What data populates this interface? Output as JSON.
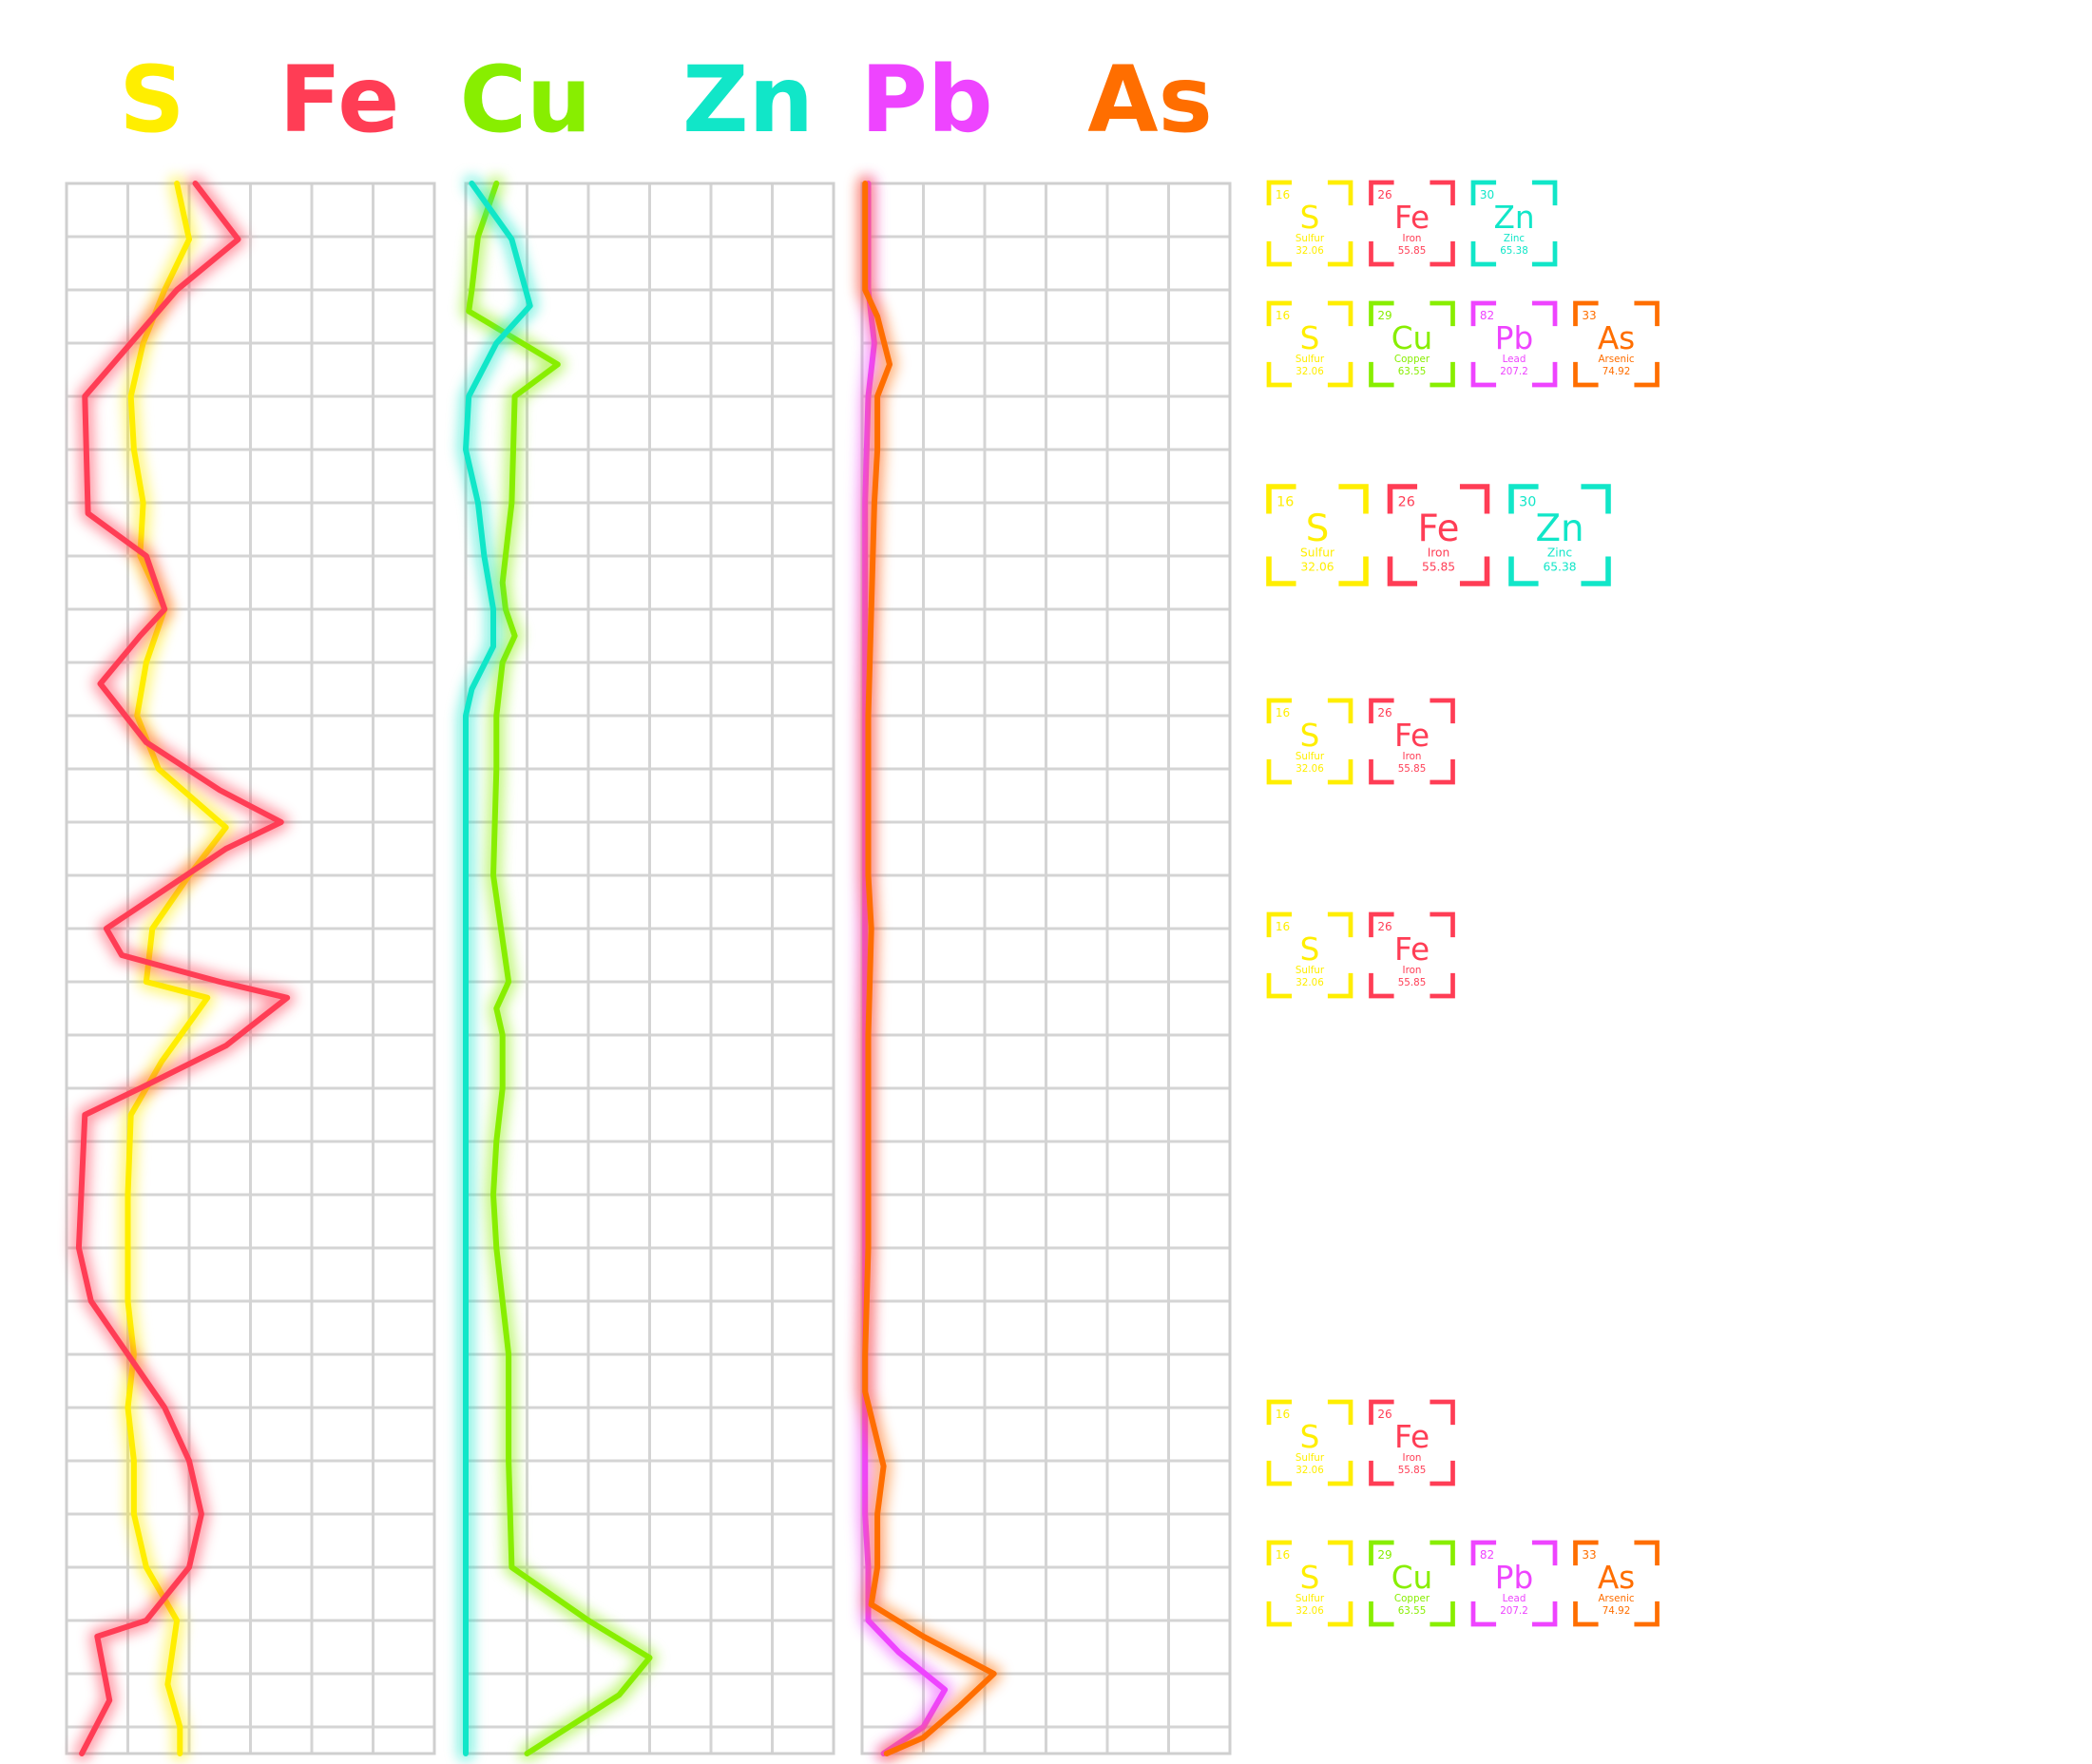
{
  "headers": [
    {
      "symbol": "S",
      "color": "#ffee00"
    },
    {
      "symbol": "Fe",
      "color": "#ff3d55"
    },
    {
      "symbol": "Cu",
      "color": "#88ee00"
    },
    {
      "symbol": "Zn",
      "color": "#11e6c8"
    },
    {
      "symbol": "Pb",
      "color": "#ee44ff"
    },
    {
      "symbol": "As",
      "color": "#ff6e00"
    }
  ],
  "elements": {
    "S": {
      "number": "16",
      "symbol": "S",
      "name": "Sulfur",
      "mass": "32.06",
      "color": "#ffee00"
    },
    "Fe": {
      "number": "26",
      "symbol": "Fe",
      "name": "Iron",
      "mass": "55.85",
      "color": "#ff3d55"
    },
    "Cu": {
      "number": "29",
      "symbol": "Cu",
      "name": "Copper",
      "mass": "63.55",
      "color": "#88ee00"
    },
    "Zn": {
      "number": "30",
      "symbol": "Zn",
      "name": "Zinc",
      "mass": "65.38",
      "color": "#11e6c8"
    },
    "Pb": {
      "number": "82",
      "symbol": "Pb",
      "name": "Lead",
      "mass": "207.2",
      "color": "#ee44ff"
    },
    "As": {
      "number": "33",
      "symbol": "As",
      "name": "Arsenic",
      "mass": "74.92",
      "color": "#ff6e00"
    }
  },
  "chart_data": {
    "type": "line",
    "orientation": "vertical-depth-profile",
    "grid": true,
    "xlim": [
      0,
      6
    ],
    "ylim": [
      0,
      29.5
    ],
    "note_axes": "x = relative concentration (grid units, no tick labels printed); y = sample position from top (grid rows, no tick labels printed)",
    "panels": [
      {
        "series": [
          {
            "element": "S",
            "color": "#ffee00",
            "points": [
              [
                1.8,
                0
              ],
              [
                2.0,
                1.05
              ],
              [
                1.6,
                2
              ],
              [
                1.25,
                3
              ],
              [
                1.05,
                4
              ],
              [
                1.1,
                5
              ],
              [
                1.25,
                6
              ],
              [
                1.2,
                7
              ],
              [
                1.6,
                8
              ],
              [
                1.3,
                9
              ],
              [
                1.15,
                10
              ],
              [
                1.5,
                11
              ],
              [
                2.6,
                12.1
              ],
              [
                2.0,
                13
              ],
              [
                1.4,
                14
              ],
              [
                1.3,
                15
              ],
              [
                2.3,
                15.3
              ],
              [
                1.55,
                16.5
              ],
              [
                1.05,
                17.5
              ],
              [
                1.0,
                19
              ],
              [
                1.0,
                21
              ],
              [
                1.1,
                22
              ],
              [
                1.0,
                23
              ],
              [
                1.1,
                24
              ],
              [
                1.1,
                25
              ],
              [
                1.3,
                26
              ],
              [
                1.8,
                27
              ],
              [
                1.65,
                28.2
              ],
              [
                1.85,
                29
              ],
              [
                1.85,
                29.5
              ]
            ]
          },
          {
            "element": "Fe",
            "color": "#ff3d55",
            "points": [
              [
                2.1,
                0
              ],
              [
                2.8,
                1.05
              ],
              [
                1.8,
                2
              ],
              [
                1.05,
                3
              ],
              [
                0.3,
                4
              ],
              [
                0.35,
                6.2
              ],
              [
                1.3,
                7
              ],
              [
                1.6,
                8
              ],
              [
                1.2,
                8.5
              ],
              [
                0.55,
                9.4
              ],
              [
                1.3,
                10.5
              ],
              [
                2.5,
                11.4
              ],
              [
                3.5,
                12
              ],
              [
                2.6,
                12.5
              ],
              [
                1.3,
                13.5
              ],
              [
                0.65,
                14
              ],
              [
                0.9,
                14.5
              ],
              [
                2.5,
                15
              ],
              [
                3.6,
                15.3
              ],
              [
                2.6,
                16.2
              ],
              [
                1.2,
                17
              ],
              [
                0.3,
                17.5
              ],
              [
                0.2,
                20
              ],
              [
                0.4,
                21
              ],
              [
                1.0,
                22
              ],
              [
                1.6,
                23
              ],
              [
                2.0,
                24
              ],
              [
                2.2,
                25
              ],
              [
                2.0,
                26
              ],
              [
                1.3,
                27
              ],
              [
                0.5,
                27.3
              ],
              [
                0.7,
                28.5
              ],
              [
                0.25,
                29.5
              ]
            ]
          }
        ]
      },
      {
        "series": [
          {
            "element": "Cu",
            "color": "#88ee00",
            "points": [
              [
                0.5,
                0
              ],
              [
                0.2,
                1
              ],
              [
                0.1,
                2
              ],
              [
                0.05,
                2.4
              ],
              [
                1.5,
                3.4
              ],
              [
                0.8,
                4
              ],
              [
                0.75,
                6
              ],
              [
                0.7,
                6.5
              ],
              [
                0.6,
                7.5
              ],
              [
                0.65,
                8
              ],
              [
                0.8,
                8.5
              ],
              [
                0.6,
                9
              ],
              [
                0.5,
                10
              ],
              [
                0.5,
                11
              ],
              [
                0.45,
                13
              ],
              [
                0.7,
                15
              ],
              [
                0.5,
                15.5
              ],
              [
                0.6,
                16
              ],
              [
                0.6,
                17
              ],
              [
                0.5,
                18
              ],
              [
                0.45,
                19
              ],
              [
                0.5,
                20
              ],
              [
                0.6,
                21
              ],
              [
                0.7,
                22
              ],
              [
                0.7,
                23
              ],
              [
                0.7,
                24
              ],
              [
                0.75,
                26
              ],
              [
                2.0,
                27
              ],
              [
                3.0,
                27.7
              ],
              [
                2.5,
                28.4
              ],
              [
                1.0,
                29.5
              ]
            ]
          },
          {
            "element": "Zn",
            "color": "#11e6c8",
            "points": [
              [
                0.1,
                0
              ],
              [
                0.75,
                1.05
              ],
              [
                1.05,
                2.3
              ],
              [
                0.5,
                3
              ],
              [
                0.05,
                4
              ],
              [
                0.0,
                5
              ],
              [
                0.2,
                6
              ],
              [
                0.3,
                7
              ],
              [
                0.45,
                8
              ],
              [
                0.45,
                8.7
              ],
              [
                0.1,
                9.5
              ],
              [
                0.0,
                10
              ],
              [
                0.0,
                29.5
              ]
            ]
          }
        ]
      },
      {
        "series": [
          {
            "element": "Pb",
            "color": "#ee44ff",
            "points": [
              [
                0.1,
                0
              ],
              [
                0.1,
                2
              ],
              [
                0.2,
                3
              ],
              [
                0.1,
                4
              ],
              [
                0.05,
                6
              ],
              [
                0.05,
                8
              ],
              [
                0.05,
                10
              ],
              [
                0.05,
                14
              ],
              [
                0.05,
                18
              ],
              [
                0.05,
                22
              ],
              [
                0.05,
                25
              ],
              [
                0.1,
                26
              ],
              [
                0.1,
                27
              ],
              [
                0.6,
                27.6
              ],
              [
                1.35,
                28.3
              ],
              [
                1.0,
                29
              ],
              [
                0.35,
                29.5
              ]
            ]
          },
          {
            "element": "As",
            "color": "#ff6e00",
            "points": [
              [
                0.05,
                0
              ],
              [
                0.05,
                2
              ],
              [
                0.25,
                2.5
              ],
              [
                0.45,
                3.4
              ],
              [
                0.25,
                4
              ],
              [
                0.25,
                5
              ],
              [
                0.2,
                6
              ],
              [
                0.15,
                8
              ],
              [
                0.1,
                10
              ],
              [
                0.1,
                12
              ],
              [
                0.1,
                13
              ],
              [
                0.15,
                14
              ],
              [
                0.1,
                16
              ],
              [
                0.1,
                18
              ],
              [
                0.1,
                20
              ],
              [
                0.05,
                22
              ],
              [
                0.05,
                22.7
              ],
              [
                0.35,
                24.1
              ],
              [
                0.25,
                25
              ],
              [
                0.25,
                26
              ],
              [
                0.15,
                26.7
              ],
              [
                1.0,
                27.3
              ],
              [
                2.15,
                28.0
              ],
              [
                1.6,
                28.6
              ],
              [
                1.0,
                29.2
              ],
              [
                0.4,
                29.5
              ]
            ]
          }
        ]
      }
    ]
  },
  "tile_groups": [
    {
      "items": [
        "S",
        "Fe",
        "Zn"
      ]
    },
    {
      "items": [
        "S",
        "Cu",
        "Pb",
        "As"
      ]
    },
    {
      "items": [
        "S",
        "Fe",
        "Zn"
      ]
    },
    {
      "items": [
        "S",
        "Fe"
      ]
    },
    {
      "items": [
        "S",
        "Fe"
      ]
    },
    {
      "items": [
        "S",
        "Fe"
      ]
    },
    {
      "items": [
        "S",
        "Cu",
        "Pb",
        "As"
      ]
    }
  ]
}
